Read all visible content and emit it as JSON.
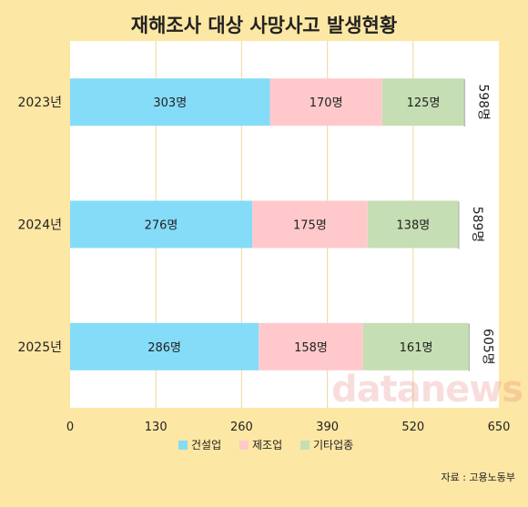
{
  "chart_data": {
    "type": "bar",
    "orientation": "horizontal",
    "stacked": true,
    "title": "재해조사 대상 사망사고 발생현황",
    "categories": [
      "2023년",
      "2024년",
      "2025년"
    ],
    "series": [
      {
        "name": "건설업",
        "values": [
          303,
          276,
          286
        ],
        "labels": [
          "303명",
          "276명",
          "286명"
        ],
        "color": "#85dcf9"
      },
      {
        "name": "제조업",
        "values": [
          170,
          175,
          158
        ],
        "labels": [
          "170명",
          "175명",
          "158명"
        ],
        "color": "#ffc9cb"
      },
      {
        "name": "기타업종",
        "values": [
          125,
          138,
          161
        ],
        "labels": [
          "125명",
          "138명",
          "161명"
        ],
        "color": "#c6deb3"
      }
    ],
    "totals": [
      "598명",
      "589명",
      "605명"
    ],
    "xlim": [
      0,
      650
    ],
    "xticks": [
      "0",
      "130",
      "260",
      "390",
      "520",
      "650"
    ],
    "grid": true,
    "legend_position": "bottom",
    "source": "자료 : 고용노동부",
    "watermark": "datanews"
  }
}
